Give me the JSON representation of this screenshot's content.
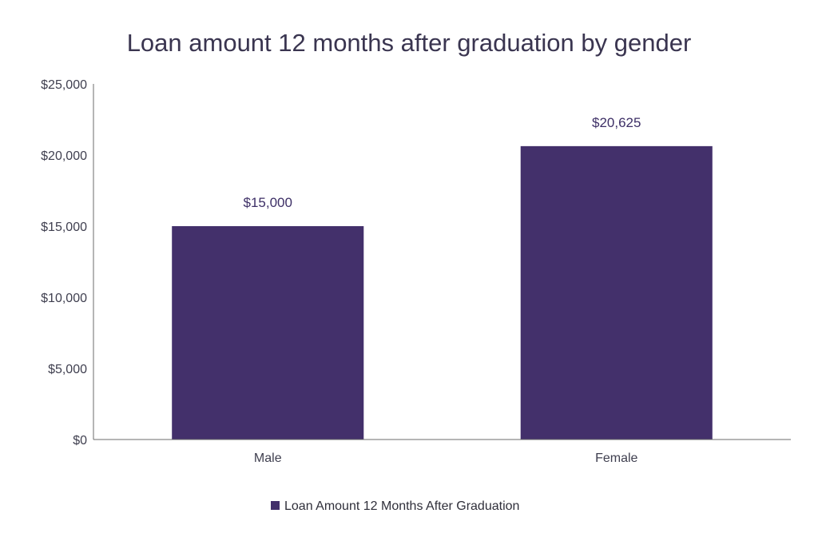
{
  "chart_data": {
    "type": "bar",
    "title": "Loan amount 12 months after graduation by gender",
    "categories": [
      "Male",
      "Female"
    ],
    "series": [
      {
        "name": "Loan Amount 12 Months After Graduation",
        "values": [
          15000,
          20625
        ],
        "data_labels": [
          "$15,000",
          "$20,625"
        ]
      }
    ],
    "ylim": [
      0,
      25000
    ],
    "yticks": [
      0,
      5000,
      10000,
      15000,
      20000,
      25000
    ],
    "ytick_labels": [
      "$0",
      "$5,000",
      "$10,000",
      "$15,000",
      "$20,000",
      "$25,000"
    ],
    "xlabel": "",
    "ylabel": "",
    "grid": false,
    "legend_position": "bottom",
    "bar_color": "#43306b"
  }
}
